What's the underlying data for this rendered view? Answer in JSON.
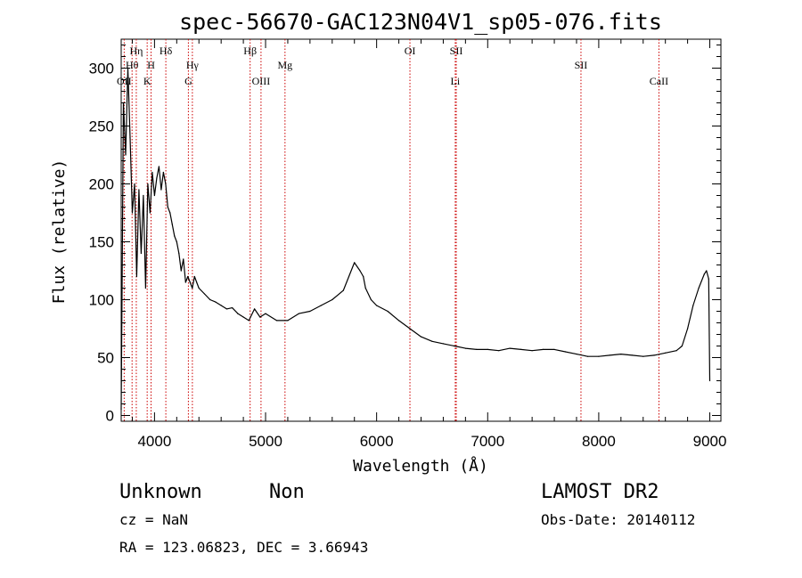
{
  "chart_data": {
    "type": "line",
    "title": "spec-56670-GAC123N04V1_sp05-076.fits",
    "xlabel": "Wavelength (Å)",
    "ylabel": "Flux (relative)",
    "xlim": [
      3700,
      9100
    ],
    "ylim": [
      -5,
      325
    ],
    "xticks": [
      4000,
      5000,
      6000,
      7000,
      8000,
      9000
    ],
    "yticks": [
      0,
      50,
      100,
      150,
      200,
      250,
      300
    ],
    "grid": false,
    "line_color": "#000000",
    "marker_color": "#cc0000",
    "series": [
      {
        "x": [
          3700,
          3720,
          3740,
          3760,
          3780,
          3800,
          3820,
          3840,
          3860,
          3880,
          3900,
          3920,
          3940,
          3960,
          3980,
          4000,
          4020,
          4040,
          4060,
          4080,
          4100,
          4120,
          4140,
          4160,
          4180,
          4200,
          4220,
          4240,
          4260,
          4280,
          4300,
          4320,
          4340,
          4360,
          4380,
          4400,
          4450,
          4500,
          4550,
          4600,
          4650,
          4700,
          4750,
          4800,
          4850,
          4900,
          4950,
          5000,
          5100,
          5200,
          5300,
          5400,
          5500,
          5600,
          5700,
          5750,
          5800,
          5850,
          5880,
          5900,
          5950,
          6000,
          6100,
          6200,
          6300,
          6400,
          6500,
          6600,
          6700,
          6800,
          6900,
          7000,
          7100,
          7200,
          7300,
          7400,
          7500,
          7600,
          7700,
          7800,
          7900,
          8000,
          8100,
          8200,
          8300,
          8400,
          8500,
          8600,
          8700,
          8750,
          8800,
          8850,
          8900,
          8950,
          8970,
          8990,
          9000
        ],
        "y": [
          5,
          270,
          225,
          300,
          240,
          175,
          200,
          120,
          195,
          140,
          190,
          110,
          200,
          175,
          210,
          190,
          205,
          215,
          195,
          210,
          200,
          180,
          175,
          165,
          155,
          150,
          140,
          125,
          135,
          115,
          120,
          115,
          110,
          120,
          115,
          110,
          105,
          100,
          98,
          95,
          92,
          93,
          88,
          85,
          82,
          92,
          85,
          88,
          82,
          82,
          88,
          90,
          95,
          100,
          108,
          120,
          132,
          125,
          120,
          110,
          100,
          95,
          90,
          82,
          75,
          68,
          64,
          62,
          60,
          58,
          57,
          57,
          56,
          58,
          57,
          56,
          57,
          57,
          55,
          53,
          51,
          51,
          52,
          53,
          52,
          51,
          52,
          54,
          56,
          60,
          75,
          95,
          110,
          122,
          125,
          118,
          30
        ]
      }
    ],
    "lines": [
      {
        "label": "OII",
        "x": 3727,
        "row": 3
      },
      {
        "label": "Hθ",
        "x": 3798,
        "row": 2
      },
      {
        "label": "Hη",
        "x": 3836,
        "row": 1
      },
      {
        "label": "K",
        "x": 3934,
        "row": 3
      },
      {
        "label": "H",
        "x": 3969,
        "row": 2
      },
      {
        "label": "Hδ",
        "x": 4102,
        "row": 1
      },
      {
        "label": "G",
        "x": 4305,
        "row": 3
      },
      {
        "label": "Hγ",
        "x": 4341,
        "row": 2
      },
      {
        "label": "Hβ",
        "x": 4861,
        "row": 1
      },
      {
        "label": "OIII",
        "x": 4959,
        "row": 3
      },
      {
        "label": "Mg",
        "x": 5175,
        "row": 2
      },
      {
        "label": "OI",
        "x": 6300,
        "row": 1
      },
      {
        "label": "SII",
        "x": 6717,
        "row": 1
      },
      {
        "label": "Li",
        "x": 6708,
        "row": 3
      },
      {
        "label": "SII",
        "x": 7840,
        "row": 2
      },
      {
        "label": "CaII",
        "x": 8542,
        "row": 3
      }
    ]
  },
  "info": {
    "class": "Unknown",
    "subclass": "Non",
    "survey": "LAMOST DR2",
    "cz": "cz = NaN",
    "obs_date": "Obs-Date: 20140112",
    "radec": "RA = 123.06823, DEC =    3.66943"
  }
}
